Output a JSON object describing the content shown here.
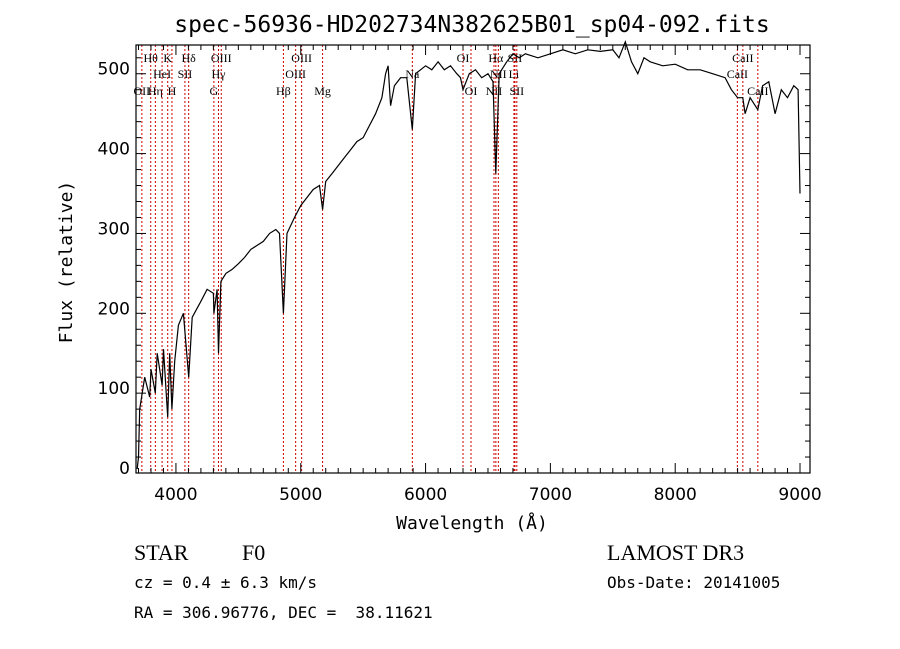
{
  "chart_data": {
    "type": "line",
    "title": "spec-56936-HD202734N382625B01_sp04-092.fits",
    "xlabel": "Wavelength (Å)",
    "ylabel": "Flux (relative)",
    "xlim": [
      3680,
      9080
    ],
    "ylim": [
      0,
      536
    ],
    "xticks": [
      4000,
      5000,
      6000,
      7000,
      8000,
      9000
    ],
    "yticks": [
      0,
      100,
      200,
      300,
      400,
      500
    ],
    "grid": false,
    "series": [
      {
        "name": "spectrum",
        "color": "#000000",
        "x": [
          3690,
          3700,
          3710,
          3750,
          3790,
          3800,
          3835,
          3850,
          3889,
          3900,
          3934,
          3950,
          3968,
          3990,
          4020,
          4060,
          4102,
          4130,
          4200,
          4250,
          4300,
          4304,
          4330,
          4341,
          4360,
          4400,
          4450,
          4500,
          4550,
          4600,
          4650,
          4700,
          4750,
          4800,
          4830,
          4861,
          4890,
          4950,
          5000,
          5050,
          5100,
          5150,
          5175,
          5200,
          5250,
          5300,
          5350,
          5400,
          5450,
          5500,
          5550,
          5600,
          5650,
          5680,
          5700,
          5720,
          5750,
          5800,
          5850,
          5894,
          5920,
          6000,
          6050,
          6100,
          6150,
          6200,
          6250,
          6280,
          6300,
          6350,
          6400,
          6450,
          6500,
          6540,
          6563,
          6590,
          6650,
          6700,
          6750,
          6800,
          6900,
          7000,
          7100,
          7200,
          7300,
          7400,
          7500,
          7550,
          7600,
          7650,
          7700,
          7750,
          7800,
          7900,
          8000,
          8100,
          8200,
          8300,
          8400,
          8450,
          8500,
          8542,
          8560,
          8600,
          8662,
          8700,
          8750,
          8800,
          8850,
          8900,
          8950,
          8985,
          9000
        ],
        "y": [
          5,
          20,
          80,
          120,
          95,
          130,
          100,
          150,
          110,
          155,
          70,
          150,
          80,
          140,
          185,
          200,
          120,
          195,
          215,
          230,
          225,
          200,
          230,
          150,
          240,
          250,
          255,
          262,
          270,
          280,
          285,
          290,
          300,
          305,
          300,
          200,
          300,
          320,
          335,
          345,
          355,
          360,
          330,
          365,
          375,
          385,
          395,
          405,
          415,
          420,
          435,
          450,
          470,
          500,
          510,
          460,
          485,
          495,
          495,
          430,
          500,
          510,
          505,
          515,
          505,
          510,
          500,
          495,
          480,
          500,
          505,
          495,
          500,
          490,
          375,
          500,
          515,
          525,
          520,
          525,
          520,
          525,
          530,
          525,
          530,
          528,
          530,
          520,
          540,
          515,
          500,
          520,
          515,
          510,
          512,
          505,
          505,
          500,
          495,
          480,
          470,
          470,
          450,
          470,
          455,
          485,
          490,
          450,
          480,
          470,
          485,
          480,
          350
        ]
      }
    ],
    "line_color": "#cc0000",
    "annotations": [
      {
        "label": "OII",
        "wave": 3727,
        "row": 3
      },
      {
        "label": "Hθ",
        "wave": 3798,
        "row": 1
      },
      {
        "label": "Hη",
        "wave": 3835,
        "row": 3
      },
      {
        "label": "HeI",
        "wave": 3889,
        "row": 2
      },
      {
        "label": "K",
        "wave": 3934,
        "row": 1
      },
      {
        "label": "H",
        "wave": 3968,
        "row": 3
      },
      {
        "label": "SII",
        "wave": 4072,
        "row": 2
      },
      {
        "label": "Hδ",
        "wave": 4102,
        "row": 1
      },
      {
        "label": "G",
        "wave": 4304,
        "row": 3
      },
      {
        "label": "Hγ",
        "wave": 4341,
        "row": 2
      },
      {
        "label": "OIII",
        "wave": 4363,
        "row": 1
      },
      {
        "label": "Hβ",
        "wave": 4861,
        "row": 3
      },
      {
        "label": "OIII",
        "wave": 4959,
        "row": 2
      },
      {
        "label": "OIII",
        "wave": 5007,
        "row": 1
      },
      {
        "label": "Mg",
        "wave": 5175,
        "row": 3
      },
      {
        "label": "Na",
        "wave": 5894,
        "row": 2
      },
      {
        "label": "OI",
        "wave": 6300,
        "row": 1
      },
      {
        "label": "OI",
        "wave": 6364,
        "row": 3
      },
      {
        "label": "NII",
        "wave": 6548,
        "row": 3
      },
      {
        "label": "Hα",
        "wave": 6563,
        "row": 1
      },
      {
        "label": "NII",
        "wave": 6583,
        "row": 2
      },
      {
        "label": "Li",
        "wave": 6708,
        "row": 2
      },
      {
        "label": "SII",
        "wave": 6716,
        "row": 1
      },
      {
        "label": "SII",
        "wave": 6731,
        "row": 3
      },
      {
        "label": "CaII",
        "wave": 8498,
        "row": 2
      },
      {
        "label": "CaII",
        "wave": 8542,
        "row": 1
      },
      {
        "label": "CaII",
        "wave": 8662,
        "row": 3
      }
    ]
  },
  "info": {
    "object_type": "STAR",
    "subclass": "F0",
    "survey": "LAMOST DR3",
    "cz": "cz = 0.4 ± 6.3 km/s",
    "obs_date": "Obs-Date: 20141005",
    "coords": "RA = 306.96776, DEC =  38.11621"
  }
}
